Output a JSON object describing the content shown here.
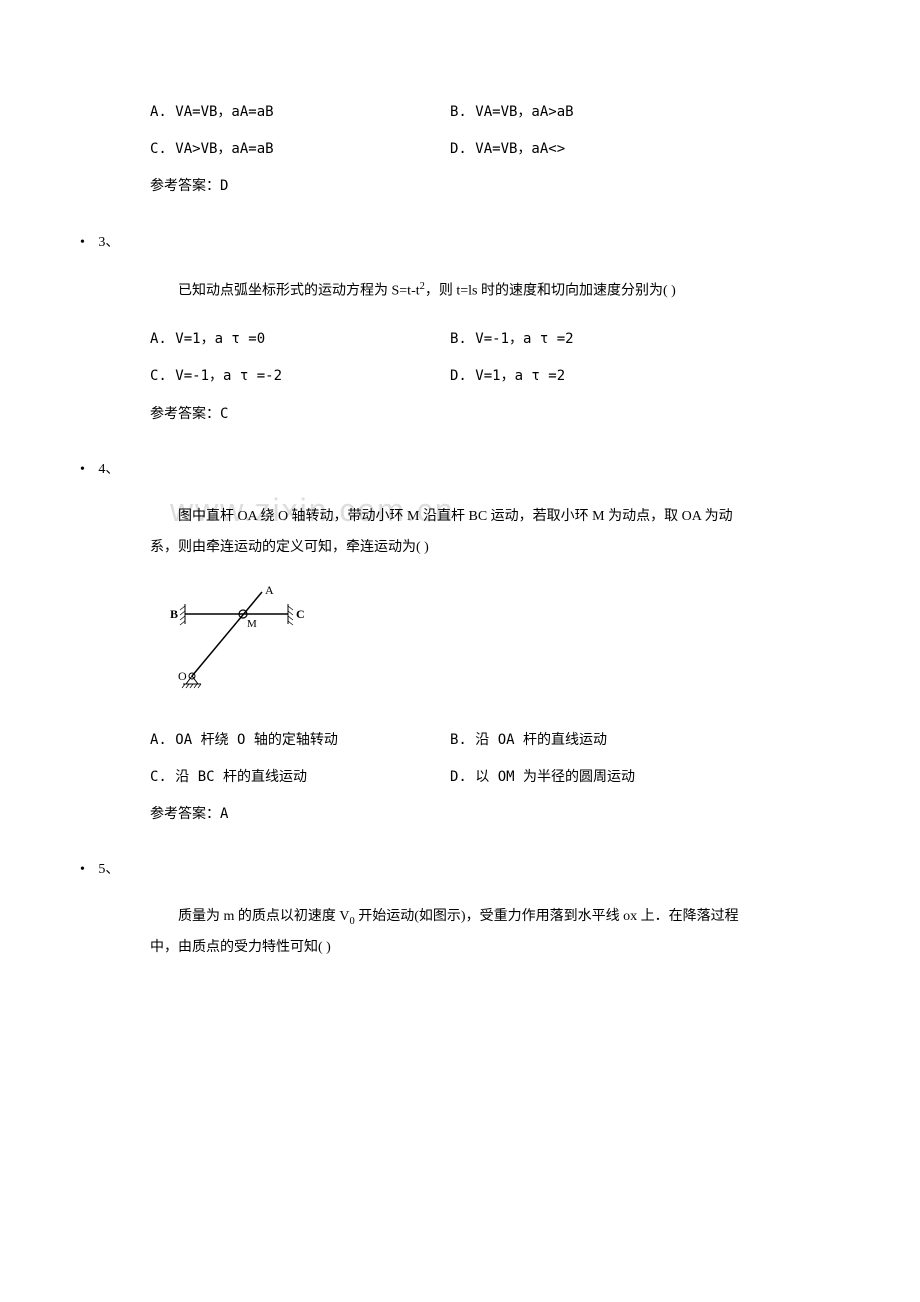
{
  "q2_options": {
    "a": "A. VA=VB，aA=aB",
    "b": "B. VA=VB，aA>aB",
    "c": "C. VA>VB，aA=aB",
    "d": "D. VA=VB，aA<>"
  },
  "q2_answer": "参考答案：D",
  "q3_num": "3、",
  "q3_text_html": "已知动点弧坐标形式的运动方程为 S=t-t<span class=\"sup\">2</span>，则 t=ls 时的速度和切向加速度分别为( )",
  "q3_options": {
    "a": "A. V=1，a τ =0",
    "b": "B. V=-1，a τ =2",
    "c": "C. V=-1，a τ =-2",
    "d": "D. V=1，a τ =2"
  },
  "q3_answer": "参考答案：C",
  "q4_num": "4、",
  "q4_text": "图中直杆 OA 绕 O 轴转动，带动小环 M 沿直杆 BC 运动，若取小环 M 为动点，取 OA 为动系，则由牵连运动的定义可知，牵连运动为( )",
  "q4_options": {
    "a": "A. OA 杆绕 O 轴的定轴转动",
    "b": "B. 沿 OA 杆的直线运动",
    "c": "C. 沿 BC 杆的直线运动",
    "d": "D. 以 OM 为半径的圆周运动"
  },
  "q4_answer": "参考答案：A",
  "q5_num": "5、",
  "q5_text_html": "质量为 m 的质点以初速度 V<span class=\"sub\">0</span> 开始运动(如图示)，受重力作用落到水平线 ox 上．在降落过程中，由质点的受力特性可知( )",
  "watermark_text": "www.zixin.com.cn",
  "figure": {
    "label_A": "A",
    "label_B": "B",
    "label_C": "C",
    "label_M": "M",
    "label_O": "O",
    "stroke": "#000000",
    "stroke_width": 1,
    "width": 140,
    "height": 110
  }
}
